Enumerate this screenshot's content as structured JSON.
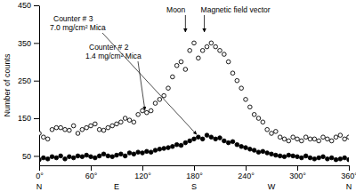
{
  "chart_data": {
    "type": "scatter",
    "y_label": "Number of counts",
    "x": [
      0,
      5,
      10,
      15,
      20,
      25,
      30,
      35,
      40,
      45,
      50,
      55,
      60,
      65,
      70,
      75,
      80,
      85,
      90,
      95,
      100,
      105,
      110,
      115,
      120,
      125,
      130,
      135,
      140,
      145,
      150,
      155,
      160,
      165,
      170,
      175,
      180,
      185,
      190,
      195,
      200,
      205,
      210,
      215,
      220,
      225,
      230,
      235,
      240,
      245,
      250,
      255,
      260,
      265,
      270,
      275,
      280,
      285,
      290,
      295,
      300,
      305,
      310,
      315,
      320,
      325,
      330,
      335,
      340,
      345,
      350,
      355,
      360
    ],
    "series": [
      {
        "name": "Counter # 3",
        "description": "7.0 mg/cm² Mica",
        "color": "#000000",
        "marker": "filled-circle",
        "values": [
          40,
          45,
          42,
          48,
          45,
          50,
          42,
          48,
          45,
          50,
          48,
          52,
          48,
          45,
          50,
          55,
          50,
          48,
          52,
          55,
          50,
          58,
          55,
          60,
          58,
          62,
          60,
          65,
          68,
          70,
          72,
          75,
          80,
          78,
          85,
          90,
          95,
          100,
          95,
          105,
          100,
          95,
          98,
          90,
          85,
          88,
          80,
          75,
          72,
          68,
          65,
          60,
          62,
          58,
          55,
          52,
          50,
          48,
          52,
          50,
          48,
          45,
          50,
          45,
          42,
          45,
          48,
          42,
          45,
          40,
          42,
          45,
          40
        ]
      },
      {
        "name": "Counter # 2",
        "description": "1.4 mg/cm² Mica",
        "color": "#000000",
        "marker": "open-circle",
        "values": [
          110,
          100,
          95,
          120,
          125,
          125,
          120,
          118,
          130,
          110,
          120,
          125,
          130,
          135,
          120,
          118,
          125,
          130,
          135,
          140,
          150,
          145,
          140,
          160,
          170,
          165,
          170,
          190,
          200,
          210,
          230,
          260,
          290,
          300,
          280,
          330,
          350,
          310,
          330,
          340,
          350,
          340,
          330,
          320,
          300,
          270,
          250,
          230,
          200,
          180,
          160,
          150,
          140,
          120,
          110,
          115,
          100,
          95,
          90,
          100,
          95,
          90,
          100,
          95,
          95,
          90,
          100,
          95,
          90,
          100,
          105,
          95,
          100
        ]
      }
    ],
    "xlim": [
      0,
      360
    ],
    "xticks": [
      {
        "value": 0,
        "label": "0°"
      },
      {
        "value": 60,
        "label": "60°"
      },
      {
        "value": 120,
        "label": "120°"
      },
      {
        "value": 180,
        "label": "180°"
      },
      {
        "value": 240,
        "label": "240°"
      },
      {
        "value": 300,
        "label": "300°"
      },
      {
        "value": 360,
        "label": "360°"
      }
    ],
    "compass_labels": [
      {
        "value": 0,
        "label": "N"
      },
      {
        "value": 90,
        "label": "E"
      },
      {
        "value": 180,
        "label": "S"
      },
      {
        "value": 270,
        "label": "W"
      },
      {
        "value": 360,
        "label": "N"
      }
    ],
    "ylim": [
      25,
      450
    ],
    "yticks": [
      50,
      150,
      250,
      350,
      450
    ],
    "annotations": [
      {
        "text": "Moon",
        "x": 170
      },
      {
        "text": "Magnetic field vector",
        "x": 192
      }
    ],
    "grid": false
  }
}
